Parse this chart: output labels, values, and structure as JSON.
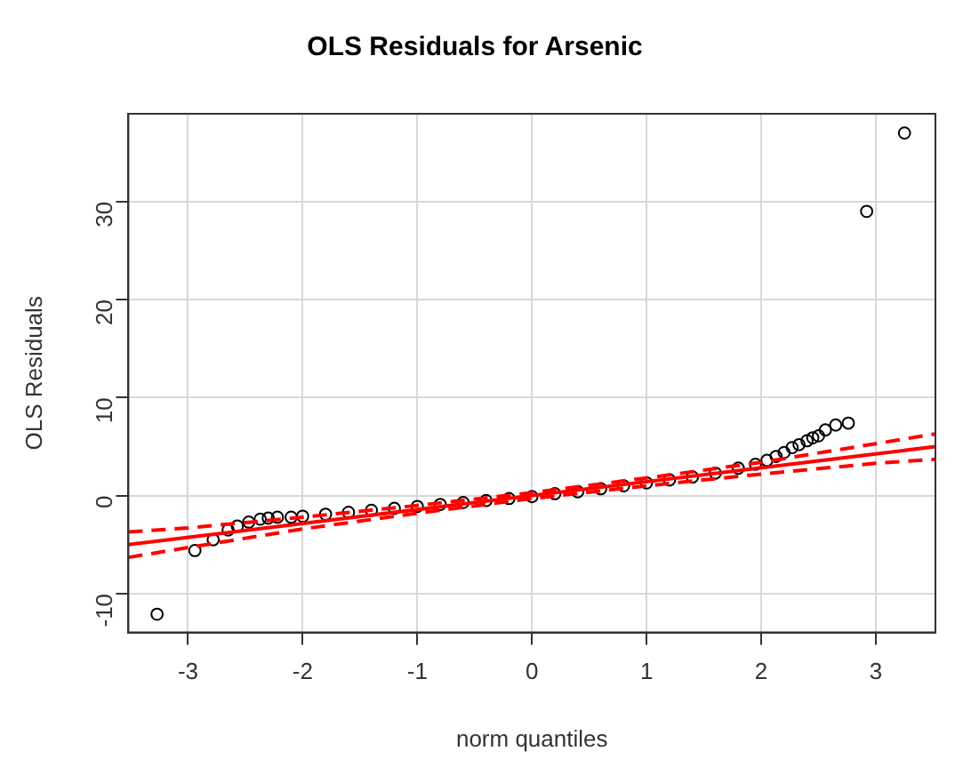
{
  "chart_data": {
    "type": "scatter",
    "title": "OLS Residuals for Arsenic",
    "xlabel": "norm quantiles",
    "ylabel": "OLS Residuals",
    "xlim": [
      -3.52,
      3.52
    ],
    "ylim": [
      -13.96,
      38.96
    ],
    "xticks": [
      -3,
      -2,
      -1,
      0,
      1,
      2,
      3
    ],
    "yticks": [
      -10,
      0,
      10,
      20,
      30
    ],
    "grid": true,
    "legend": false,
    "series": [
      {
        "marker": "circle",
        "color": "#000000",
        "x": [
          -3.27,
          -2.94,
          -2.78,
          -2.65,
          -2.57,
          -2.47,
          -2.37,
          -2.3,
          -2.22,
          -2.1,
          -2,
          -1.8,
          -1.6,
          -1.4,
          -1.2,
          -1,
          -0.8,
          -0.6,
          -0.4,
          -0.2,
          0,
          0.2,
          0.4,
          0.6,
          0.8,
          1,
          1.2,
          1.4,
          1.6,
          1.8,
          1.95,
          2.05,
          2.13,
          2.2,
          2.27,
          2.33,
          2.4,
          2.45,
          2.5,
          2.56,
          2.65,
          2.76,
          2.92,
          3.25
        ],
        "values": [
          -12.1,
          -5.6,
          -4.5,
          -3.5,
          -3.1,
          -2.7,
          -2.4,
          -2.3,
          -2.2,
          -2.2,
          -2.1,
          -1.9,
          -1.7,
          -1.5,
          -1.3,
          -1.1,
          -0.9,
          -0.7,
          -0.5,
          -0.3,
          -0.1,
          0.2,
          0.4,
          0.7,
          1,
          1.3,
          1.6,
          1.9,
          2.3,
          2.8,
          3.2,
          3.6,
          4,
          4.4,
          4.9,
          5.2,
          5.6,
          5.9,
          6.1,
          6.7,
          7.2,
          7.4,
          29,
          37
        ]
      },
      {
        "type": "line",
        "marker": "none",
        "line_style": "solid",
        "color": "#ff0000",
        "x": [
          -3.52,
          3.52
        ],
        "values": [
          -5,
          5
        ]
      },
      {
        "type": "line",
        "marker": "none",
        "line_style": "dashed",
        "color": "#ff0000",
        "x": [
          -3.52,
          -3,
          -2,
          -1,
          0,
          1,
          2,
          3,
          3.52
        ],
        "values": [
          -3.7,
          -3.3,
          -2.2,
          -1,
          0.3,
          1.8,
          3.4,
          5.3,
          6.3
        ]
      },
      {
        "type": "line",
        "marker": "none",
        "line_style": "dashed",
        "color": "#ff0000",
        "x": [
          -3.52,
          -3,
          -2,
          -1,
          0,
          1,
          2,
          3,
          3.52
        ],
        "values": [
          -6.3,
          -5.3,
          -3.4,
          -1.8,
          -0.3,
          1,
          2.2,
          3.3,
          3.7
        ]
      }
    ]
  }
}
